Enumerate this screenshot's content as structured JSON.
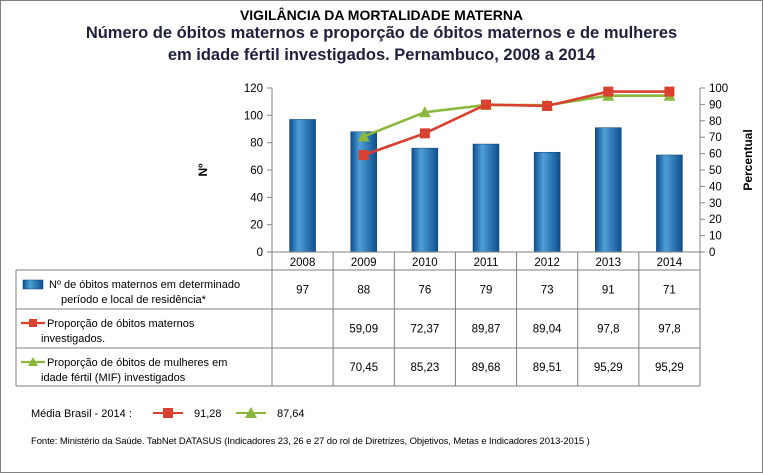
{
  "titles": {
    "line1": "VIGILÂNCIA DA MORTALIDADE MATERNA",
    "line2": "Número de óbitos maternos e proporção de óbitos maternos e de mulheres",
    "line3": "em idade fértil investigados. Pernambuco, 2008 a 2014"
  },
  "chart_data": {
    "type": "bar",
    "categories": [
      "2008",
      "2009",
      "2010",
      "2011",
      "2012",
      "2013",
      "2014"
    ],
    "series": [
      {
        "name": "Nº de óbitos maternos em determinado período e local de residência*",
        "type": "bar",
        "axis": "left",
        "values": [
          97,
          88,
          76,
          79,
          73,
          91,
          71
        ],
        "labels": [
          "97",
          "88",
          "76",
          "79",
          "73",
          "91",
          "71"
        ]
      },
      {
        "name": "Proporção de óbitos maternos investigados.",
        "type": "line",
        "axis": "right",
        "values": [
          null,
          59.09,
          72.37,
          89.87,
          89.04,
          97.8,
          97.8
        ],
        "labels": [
          "",
          "59,09",
          "72,37",
          "89,87",
          "89,04",
          "97,8",
          "97,8"
        ]
      },
      {
        "name": "Proporção de óbitos de mulheres em idade fértil (MIF) investigados",
        "type": "line",
        "axis": "right",
        "values": [
          null,
          70.45,
          85.23,
          89.68,
          89.51,
          95.29,
          95.29
        ],
        "labels": [
          "",
          "70,45",
          "85,23",
          "89,68",
          "89,51",
          "95,29",
          "95,29"
        ]
      }
    ],
    "ylabel": "Nº",
    "ylabel_right": "Percentual",
    "ylim": [
      0,
      120
    ],
    "ylim_right": [
      0,
      100
    ],
    "yticks": [
      "0",
      "20",
      "40",
      "60",
      "80",
      "100",
      "120"
    ],
    "yticks_right": [
      "0",
      "10",
      "20",
      "30",
      "40",
      "50",
      "60",
      "70",
      "80",
      "90",
      "100"
    ],
    "grid": false,
    "legend": "data-table"
  },
  "legend_lines": [
    [
      "Nº de óbitos maternos em determinado",
      "período e local de residência*"
    ],
    [
      "Proporção de óbitos maternos",
      "investigados."
    ],
    [
      "Proporção de óbitos de mulheres em",
      "idade fértil (MIF) investigados"
    ]
  ],
  "media": {
    "label": "Média Brasil - 2014 :",
    "value1": "91,28",
    "value2": "87,64"
  },
  "source": "Fonte: Ministério da Saúde. TabNet DATASUS (Indicadores 23, 26 e 27  do rol de Diretrizes, Objetivos, Metas e Indicadores 2013-2015 )",
  "colors": {
    "bar_top": "#4f9fd8",
    "bar_bottom": "#0d4f8f",
    "line1": "#d9402f",
    "line2": "#8bb83c"
  }
}
